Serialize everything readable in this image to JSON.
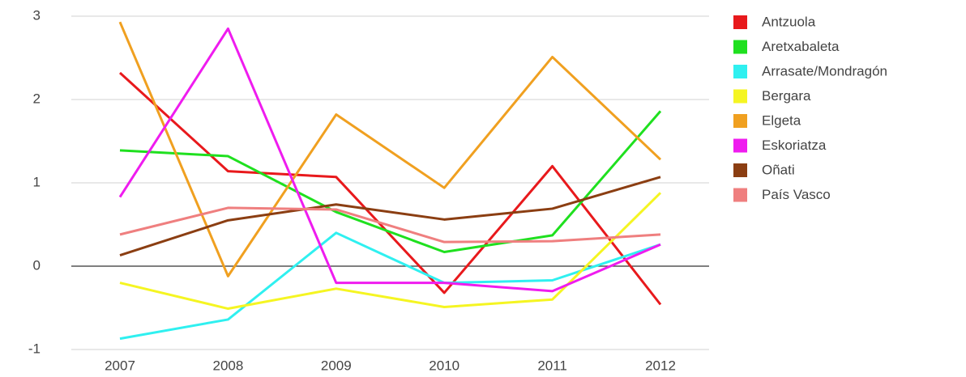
{
  "chart_data": {
    "type": "line",
    "categories": [
      "2007",
      "2008",
      "2009",
      "2010",
      "2011",
      "2012"
    ],
    "series": [
      {
        "name": "Antzuola",
        "color": "#e8191c",
        "values": [
          2.32,
          1.14,
          1.07,
          -0.32,
          1.2,
          -0.46
        ]
      },
      {
        "name": "Aretxabaleta",
        "color": "#1fe01f",
        "values": [
          1.39,
          1.32,
          0.65,
          0.17,
          0.37,
          1.86
        ]
      },
      {
        "name": "Arrasate/Mondragón",
        "color": "#2ff0f0",
        "values": [
          -0.87,
          -0.64,
          0.4,
          -0.2,
          -0.17,
          0.26
        ]
      },
      {
        "name": "Bergara",
        "color": "#f5f522",
        "values": [
          -0.2,
          -0.51,
          -0.27,
          -0.49,
          -0.4,
          0.88
        ]
      },
      {
        "name": "Elgeta",
        "color": "#f0a020",
        "values": [
          2.93,
          -0.12,
          1.82,
          0.94,
          2.51,
          1.28
        ]
      },
      {
        "name": "Eskoriatza",
        "color": "#ef1cef",
        "values": [
          0.83,
          2.85,
          -0.2,
          -0.2,
          -0.3,
          0.26
        ]
      },
      {
        "name": "Oñati",
        "color": "#8b3e12",
        "values": [
          0.13,
          0.55,
          0.74,
          0.56,
          0.69,
          1.07
        ]
      },
      {
        "name": "País Vasco",
        "color": "#ef7f7f",
        "values": [
          0.38,
          0.7,
          0.68,
          0.29,
          0.3,
          0.38
        ]
      }
    ],
    "ylim": [
      -1,
      3
    ],
    "yticks": [
      -1,
      0,
      1,
      2,
      3
    ],
    "grid": true,
    "legend": "right"
  }
}
